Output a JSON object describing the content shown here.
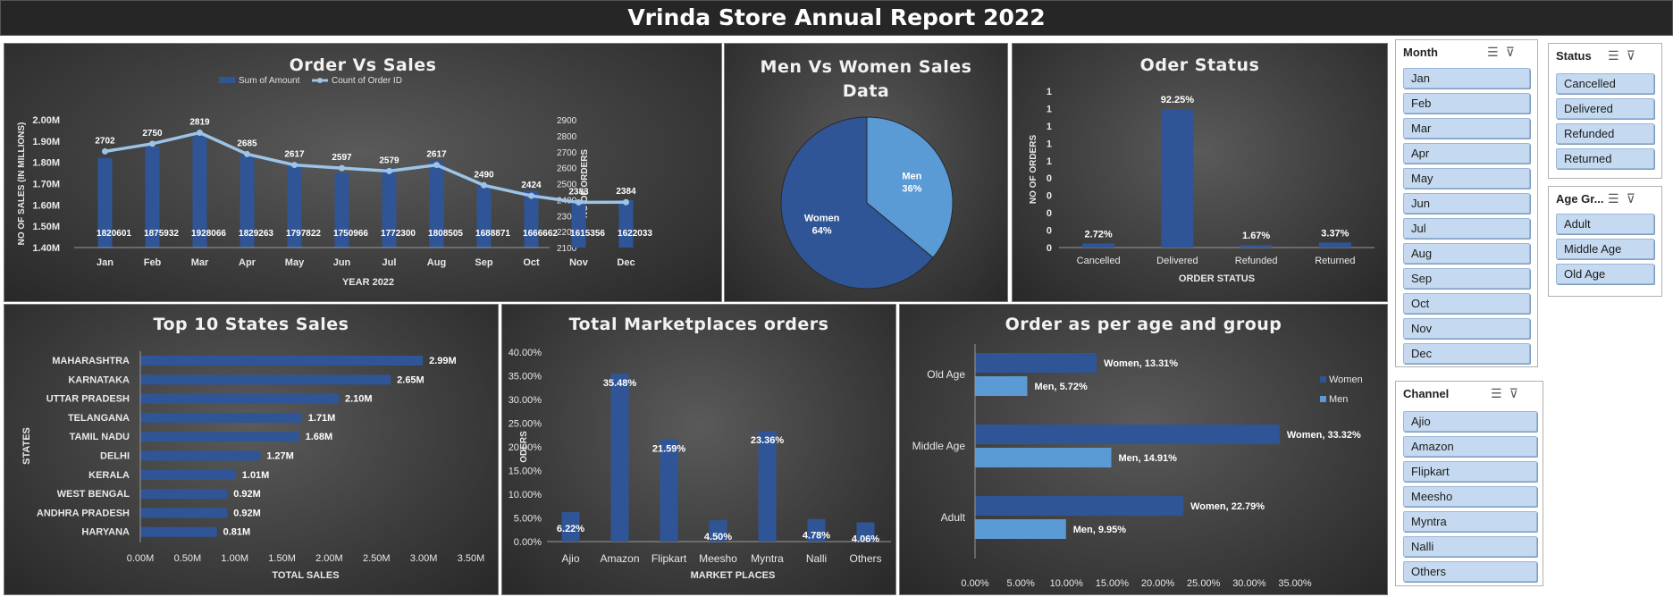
{
  "report_title": "Vrinda Store Annual Report 2022",
  "colors": {
    "dark_blue": "#2f5597",
    "light_blue": "#5b9bd5",
    "line": "#9dc3e6",
    "text": "#ffffff",
    "slicer_item": "#c5daf0"
  },
  "chart_data": [
    {
      "type": "bar+line",
      "title": "Order Vs Sales",
      "xlabel": "YEAR 2022",
      "ylabel": "NO OF SALES (IN MILLIONS)",
      "y2label": "NO OF ORDERS",
      "categories": [
        "Jan",
        "Feb",
        "Mar",
        "Apr",
        "May",
        "Jun",
        "Jul",
        "Aug",
        "Sep",
        "Oct",
        "Nov",
        "Dec"
      ],
      "series": [
        {
          "name": "Sum of Amount",
          "axis": "left",
          "values": [
            1820601,
            1875932,
            1928066,
            1829263,
            1797822,
            1750966,
            1772300,
            1808505,
            1688871,
            1666662,
            1615356,
            1622033
          ]
        },
        {
          "name": "Count of Order ID",
          "axis": "right",
          "values": [
            2702,
            2750,
            2819,
            2685,
            2617,
            2597,
            2579,
            2617,
            2490,
            2424,
            2383,
            2384
          ]
        }
      ],
      "ylim": [
        1400000,
        2000000
      ],
      "yticks": [
        "1.40M",
        "1.50M",
        "1.60M",
        "1.70M",
        "1.80M",
        "1.90M",
        "2.00M"
      ],
      "y2lim": [
        2100,
        2900
      ],
      "y2ticks": [
        "2100",
        "2200",
        "2300",
        "2400",
        "2500",
        "2600",
        "2700",
        "2800",
        "2900"
      ],
      "legend": "top-center"
    },
    {
      "type": "pie",
      "title": "Men Vs Women Sales Data",
      "slices": [
        {
          "label": "Men",
          "value": 36,
          "display": "36%"
        },
        {
          "label": "Women",
          "value": 64,
          "display": "64%"
        }
      ]
    },
    {
      "type": "bar",
      "title": "Oder Status",
      "xlabel": "ORDER STATUS",
      "ylabel": "NO OF ORDERS",
      "categories": [
        "Cancelled",
        "Delivered",
        "Refunded",
        "Returned"
      ],
      "values": [
        2.72,
        92.25,
        1.67,
        3.37
      ],
      "data_labels": [
        "2.72%",
        "92.25%",
        "1.67%",
        "3.37%"
      ],
      "yticks": [
        "0",
        "0",
        "0",
        "0",
        "0",
        "1",
        "1",
        "1",
        "1",
        "1"
      ],
      "ylim": [
        0,
        100
      ]
    },
    {
      "type": "bar",
      "orientation": "horizontal",
      "title": "Top 10 States Sales",
      "xlabel": "TOTAL SALES",
      "ylabel": "STATES",
      "categories": [
        "MAHARASHTRA",
        "KARNATAKA",
        "UTTAR PRADESH",
        "TELANGANA",
        "TAMIL NADU",
        "DELHI",
        "KERALA",
        "WEST BENGAL",
        "ANDHRA PRADESH",
        "HARYANA"
      ],
      "values": [
        2.99,
        2.65,
        2.1,
        1.71,
        1.68,
        1.27,
        1.01,
        0.92,
        0.92,
        0.81
      ],
      "data_labels": [
        "2.99M",
        "2.65M",
        "2.10M",
        "1.71M",
        "1.68M",
        "1.27M",
        "1.01M",
        "0.92M",
        "0.92M",
        "0.81M"
      ],
      "xlim": [
        0,
        3.5
      ],
      "xticks": [
        "0.00M",
        "0.50M",
        "1.00M",
        "1.50M",
        "2.00M",
        "2.50M",
        "3.00M",
        "3.50M"
      ]
    },
    {
      "type": "bar",
      "title": "Total Marketplaces orders",
      "xlabel": "MARKET PLACES",
      "ylabel": "ODERS",
      "categories": [
        "Ajio",
        "Amazon",
        "Flipkart",
        "Meesho",
        "Myntra",
        "Nalli",
        "Others"
      ],
      "values": [
        6.22,
        35.48,
        21.59,
        4.5,
        23.36,
        4.78,
        4.06
      ],
      "data_labels": [
        "6.22%",
        "35.48%",
        "21.59%",
        "4.50%",
        "23.36%",
        "4.78%",
        "4.06%"
      ],
      "ylim": [
        0,
        40
      ],
      "yticks": [
        "0.00%",
        "5.00%",
        "10.00%",
        "15.00%",
        "20.00%",
        "25.00%",
        "30.00%",
        "35.00%",
        "40.00%"
      ]
    },
    {
      "type": "bar",
      "orientation": "horizontal",
      "title": "Order as per age and group",
      "categories": [
        "Old Age",
        "Middle Age",
        "Adult"
      ],
      "series": [
        {
          "name": "Women",
          "values": [
            13.31,
            33.32,
            22.79
          ],
          "data_labels": [
            "Women, 13.31%",
            "Women, 33.32%",
            "Women, 22.79%"
          ]
        },
        {
          "name": "Men",
          "values": [
            5.72,
            14.91,
            9.95
          ],
          "data_labels": [
            "Men, 5.72%",
            "Men, 14.91%",
            "Men, 9.95%"
          ]
        }
      ],
      "xlim": [
        0,
        35
      ],
      "xticks": [
        "0.00%",
        "5.00%",
        "10.00%",
        "15.00%",
        "20.00%",
        "25.00%",
        "30.00%",
        "35.00%"
      ],
      "legend": "right"
    }
  ],
  "slicers": {
    "month": {
      "header": "Month",
      "items": [
        "Jan",
        "Feb",
        "Mar",
        "Apr",
        "May",
        "Jun",
        "Jul",
        "Aug",
        "Sep",
        "Oct",
        "Nov",
        "Dec"
      ]
    },
    "status": {
      "header": "Status",
      "items": [
        "Cancelled",
        "Delivered",
        "Refunded",
        "Returned"
      ]
    },
    "age_group": {
      "header": "Age Gr...",
      "items": [
        "Adult",
        "Middle Age",
        "Old Age"
      ]
    },
    "channel": {
      "header": "Channel",
      "items": [
        "Ajio",
        "Amazon",
        "Flipkart",
        "Meesho",
        "Myntra",
        "Nalli",
        "Others"
      ]
    }
  }
}
